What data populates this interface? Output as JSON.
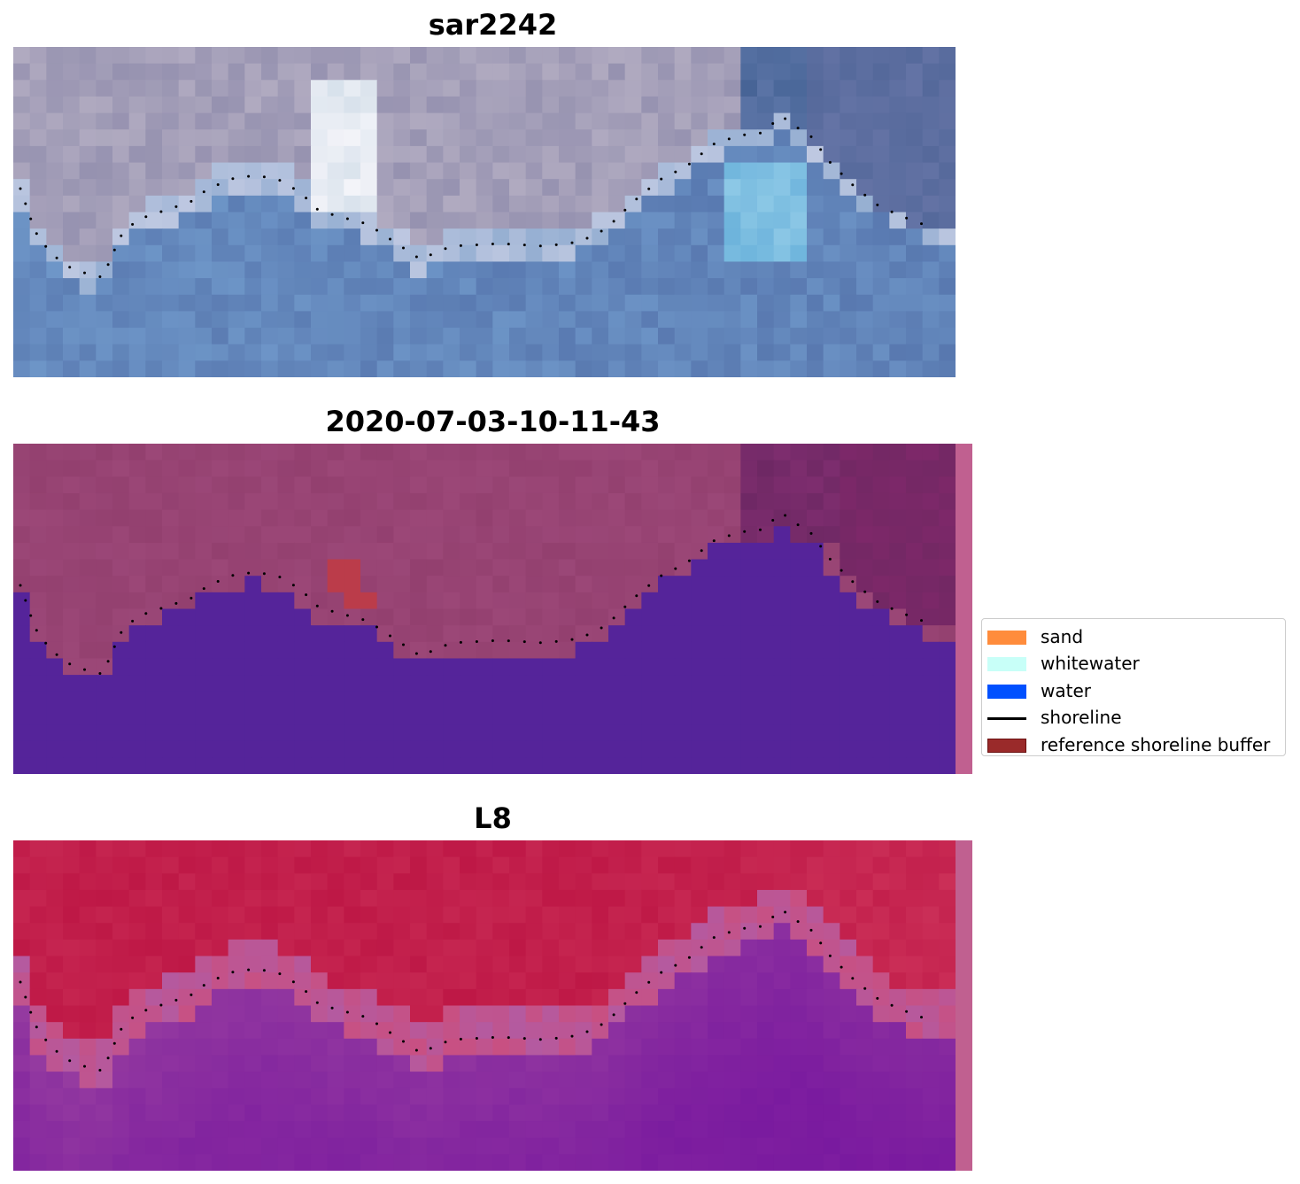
{
  "panels": [
    {
      "title": "sar2242",
      "style": "rgb"
    },
    {
      "title": "2020-07-03-10-11-43",
      "style": "classified"
    },
    {
      "title": "L8",
      "style": "index"
    }
  ],
  "legend": {
    "items": [
      {
        "label": "sand",
        "color": "#ff8c3c",
        "kind": "patch"
      },
      {
        "label": "whitewater",
        "color": "#c8fff8",
        "kind": "patch"
      },
      {
        "label": "water",
        "color": "#0050ff",
        "kind": "patch"
      },
      {
        "label": "shoreline",
        "color": "#000000",
        "kind": "line"
      },
      {
        "label": "reference shoreline buffer",
        "color": "#9a2a2a",
        "kind": "patch"
      }
    ]
  },
  "colors": {
    "class_water": "#55249a",
    "class_land": "#93406f",
    "class_buffer": "#bb3c4a",
    "side_strip": "#c06090",
    "index_land": "#be1846",
    "index_water": "#7e1ea0",
    "shoreline_dots": "#000000"
  }
}
